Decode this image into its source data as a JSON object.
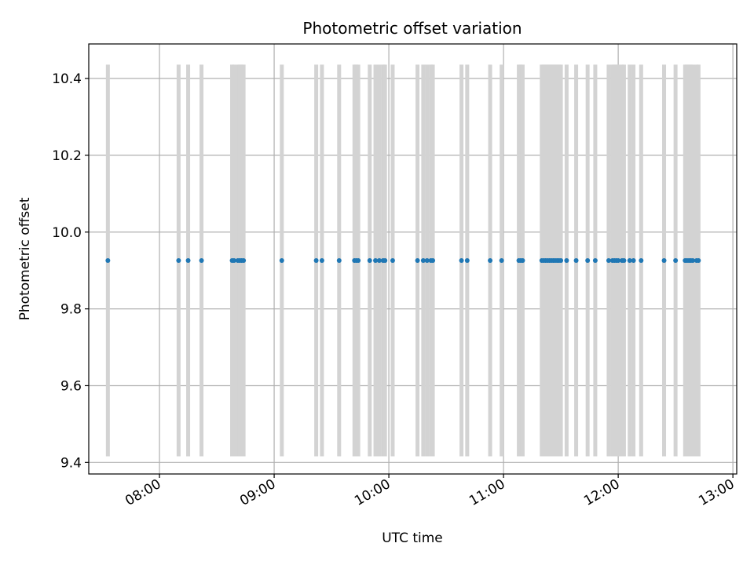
{
  "chart_data": {
    "type": "scatter",
    "title": "Photometric offset variation",
    "xlabel": "UTC time",
    "ylabel": "Photometric offset",
    "xlim": [
      "07:23",
      "13:02"
    ],
    "ylim": [
      9.37,
      10.49
    ],
    "grid": true,
    "x_ticks": [
      "08:00",
      "09:00",
      "10:00",
      "11:00",
      "12:00",
      "13:00"
    ],
    "y_ticks": [
      "9.4",
      "9.6",
      "9.8",
      "10.0",
      "10.2",
      "10.4"
    ],
    "colors": {
      "points": "#1f77b4",
      "error_bars": "#d3d3d3",
      "grid": "#b0b0b0"
    },
    "series": [
      {
        "x": [
          "07:33",
          "08:10",
          "08:15",
          "08:22",
          "08:38",
          "08:39",
          "08:41",
          "08:42",
          "08:43",
          "08:44",
          "09:04",
          "09:22",
          "09:25",
          "09:34",
          "09:42",
          "09:43",
          "09:44",
          "09:50",
          "09:53",
          "09:55",
          "09:57",
          "09:58",
          "10:02",
          "10:15",
          "10:18",
          "10:20",
          "10:22",
          "10:23",
          "10:38",
          "10:41",
          "10:53",
          "10:59",
          "11:08",
          "11:09",
          "11:10",
          "11:20",
          "11:21",
          "11:22",
          "11:23",
          "11:24",
          "11:25",
          "11:26",
          "11:27",
          "11:28",
          "11:29",
          "11:30",
          "11:33",
          "11:38",
          "11:44",
          "11:48",
          "11:55",
          "11:57",
          "11:58",
          "11:59",
          "12:00",
          "12:02",
          "12:03",
          "12:06",
          "12:08",
          "12:12",
          "12:24",
          "12:30",
          "12:35",
          "12:36",
          "12:37",
          "12:38",
          "12:39",
          "12:41",
          "12:42"
        ],
        "y": [
          9.926,
          9.926,
          9.926,
          9.926,
          9.926,
          9.926,
          9.926,
          9.926,
          9.926,
          9.926,
          9.926,
          9.926,
          9.926,
          9.926,
          9.926,
          9.926,
          9.926,
          9.926,
          9.926,
          9.926,
          9.926,
          9.926,
          9.926,
          9.926,
          9.926,
          9.926,
          9.926,
          9.926,
          9.926,
          9.926,
          9.926,
          9.926,
          9.926,
          9.926,
          9.926,
          9.926,
          9.926,
          9.926,
          9.926,
          9.926,
          9.926,
          9.926,
          9.926,
          9.926,
          9.926,
          9.926,
          9.926,
          9.926,
          9.926,
          9.926,
          9.926,
          9.926,
          9.926,
          9.926,
          9.926,
          9.926,
          9.926,
          9.926,
          9.926,
          9.926,
          9.926,
          9.926,
          9.926,
          9.926,
          9.926,
          9.926,
          9.926,
          9.926,
          9.926
        ],
        "error": 0.51
      }
    ]
  }
}
